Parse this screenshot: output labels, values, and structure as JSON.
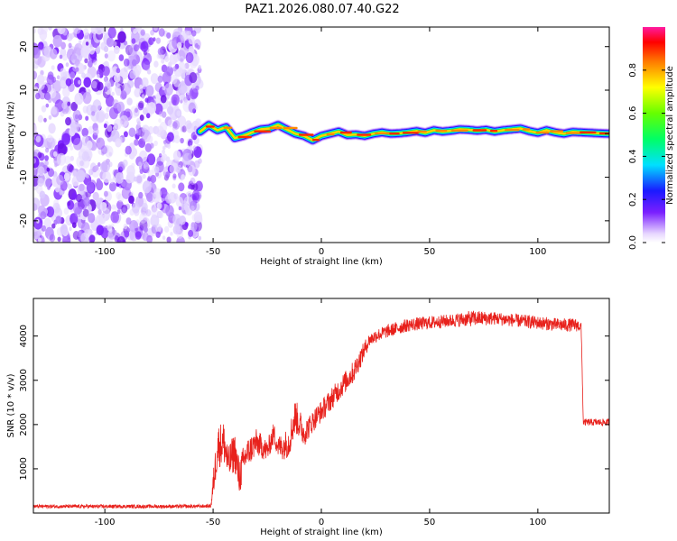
{
  "title": "PAZ1.2026.080.07.40.G22",
  "chart_data": [
    {
      "type": "heatmap",
      "title": "PAZ1.2026.080.07.40.G22",
      "xlabel": "Height of straight line (km)",
      "ylabel": "Frequency (Hz)",
      "xlim": [
        -133,
        133
      ],
      "ylim": [
        -25,
        24.5
      ],
      "xticks": [
        -100,
        -50,
        0,
        50,
        100
      ],
      "yticks": [
        -20,
        -10,
        0,
        10,
        20
      ],
      "noise_region_x": [
        -133,
        -56
      ],
      "signal_start_x": -56,
      "frequency_track": {
        "x": [
          -56,
          -52,
          -48,
          -44,
          -40,
          -36,
          -32,
          -28,
          -24,
          -20,
          -16,
          -12,
          -8,
          -4,
          0,
          4,
          8,
          12,
          16,
          20,
          24,
          28,
          32,
          36,
          40,
          44,
          48,
          52,
          56,
          60,
          64,
          68,
          72,
          76,
          80,
          84,
          88,
          92,
          96,
          100,
          104,
          108,
          112,
          116,
          120,
          124,
          128,
          133
        ],
        "freq": [
          0.5,
          2.0,
          0.8,
          1.5,
          -1.0,
          -0.5,
          0.3,
          1.0,
          1.2,
          2.0,
          1.0,
          0.0,
          -0.5,
          -1.5,
          -0.5,
          0.0,
          0.5,
          -0.3,
          -0.2,
          -0.5,
          0.0,
          0.3,
          0.0,
          0.1,
          0.3,
          0.6,
          0.2,
          0.8,
          0.5,
          0.7,
          1.0,
          0.9,
          0.7,
          0.9,
          0.5,
          0.8,
          1.0,
          1.2,
          0.6,
          0.2,
          0.8,
          0.3,
          0.0,
          0.4,
          0.3,
          0.2,
          0.1,
          0.0
        ]
      },
      "colorbar": {
        "label": "Normalized spectral amplitude",
        "ticks": [
          "0.0",
          "0.2",
          "0.4",
          "0.6",
          "0.8"
        ],
        "range": [
          0,
          1
        ]
      }
    },
    {
      "type": "line",
      "xlabel": "Height of straight line (km)",
      "ylabel": "SNR (10 * v/v)",
      "xlim": [
        -133,
        133
      ],
      "ylim": [
        0,
        4850
      ],
      "xticks": [
        -100,
        -50,
        0,
        50,
        100
      ],
      "yticks": [
        1000,
        2000,
        3000,
        4000
      ],
      "series": [
        {
          "name": "SNR",
          "color": "#e8211c",
          "x": [
            -133,
            -100,
            -60,
            -51,
            -50,
            -48,
            -45,
            -43,
            -40,
            -38,
            -35,
            -30,
            -25,
            -22,
            -20,
            -18,
            -15,
            -12,
            -8,
            -5,
            -2,
            0,
            5,
            10,
            15,
            20,
            22,
            25,
            30,
            40,
            50,
            60,
            70,
            80,
            90,
            100,
            110,
            118,
            120,
            121,
            125,
            133
          ],
          "y": [
            150,
            150,
            150,
            160,
            600,
            1500,
            1600,
            1100,
            1400,
            800,
            1300,
            1600,
            1400,
            1800,
            1500,
            1500,
            1600,
            2200,
            1800,
            2000,
            2200,
            2300,
            2600,
            2900,
            3200,
            3700,
            3900,
            4000,
            4100,
            4250,
            4300,
            4350,
            4400,
            4400,
            4350,
            4300,
            4250,
            4250,
            4200,
            2050,
            2050,
            2050
          ],
          "noise_amplitude": [
            40,
            40,
            40,
            40,
            300,
            500,
            500,
            400,
            450,
            450,
            350,
            300,
            250,
            250,
            250,
            300,
            350,
            400,
            300,
            250,
            250,
            250,
            250,
            250,
            250,
            200,
            150,
            150,
            150,
            150,
            150,
            150,
            180,
            150,
            150,
            150,
            150,
            150,
            100,
            80,
            80,
            80
          ]
        }
      ]
    }
  ]
}
